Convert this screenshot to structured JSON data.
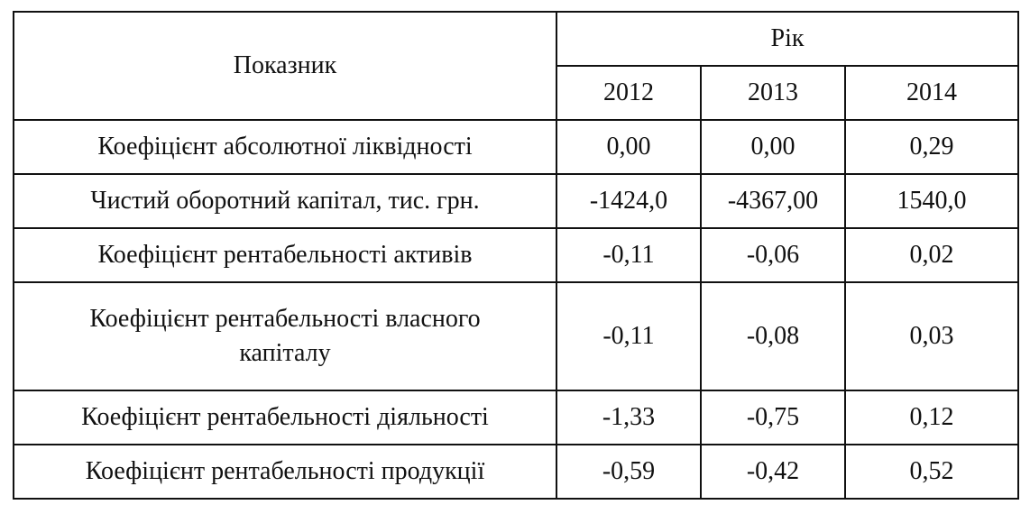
{
  "table": {
    "header": {
      "indicator": "Показник",
      "year_group": "Рік",
      "years": [
        "2012",
        "2013",
        "2014"
      ]
    },
    "rows": [
      {
        "name": "Коефіцієнт абсолютної ліквідності",
        "values": [
          "0,00",
          "0,00",
          "0,29"
        ]
      },
      {
        "name": "Чистий оборотний капітал, тис. грн.",
        "values": [
          "-1424,0",
          "-4367,00",
          "1540,0"
        ]
      },
      {
        "name": "Коефіцієнт рентабельності активів",
        "values": [
          "-0,11",
          "-0,06",
          "0,02"
        ]
      },
      {
        "name_line1": "Коефіцієнт рентабельності власного",
        "name_line2": "капіталу",
        "values": [
          "-0,11",
          "-0,08",
          "0,03"
        ]
      },
      {
        "name": "Коефіцієнт рентабельності діяльності",
        "values": [
          "-1,33",
          "-0,75",
          "0,12"
        ]
      },
      {
        "name": "Коефіцієнт рентабельності продукції",
        "values": [
          "-0,59",
          "-0,42",
          "0,52"
        ]
      }
    ]
  }
}
